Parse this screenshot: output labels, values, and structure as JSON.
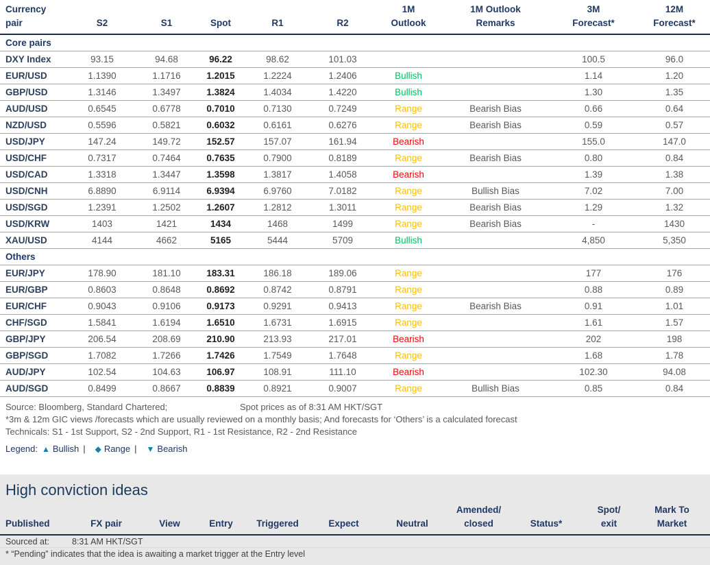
{
  "colors": {
    "navy_heading": "#1f3864",
    "bullish_green": "#00c060",
    "range_amber": "#ffc000",
    "bearish_red": "#ff0000",
    "legend_icon_teal": "#1581a8",
    "panel_background": "#e8e8e8"
  },
  "fx_table": {
    "headers": [
      "Currency\npair",
      "S2",
      "S1",
      "Spot",
      "R1",
      "R2",
      "1M\nOutlook",
      "1M Outlook\nRemarks",
      "3M\nForecast*",
      "12M\nForecast*"
    ],
    "sections": [
      {
        "label": "Core pairs",
        "rows": [
          {
            "pair": "DXY Index",
            "s2": "93.15",
            "s1": "94.68",
            "spot": "96.22",
            "r1": "98.62",
            "r2": "101.03",
            "outlook": "",
            "remarks": "",
            "m3": "100.5",
            "m12": "96.0"
          },
          {
            "pair": "EUR/USD",
            "s2": "1.1390",
            "s1": "1.1716",
            "spot": "1.2015",
            "r1": "1.2224",
            "r2": "1.2406",
            "outlook": "Bullish",
            "remarks": "",
            "m3": "1.14",
            "m12": "1.20"
          },
          {
            "pair": "GBP/USD",
            "s2": "1.3146",
            "s1": "1.3497",
            "spot": "1.3824",
            "r1": "1.4034",
            "r2": "1.4220",
            "outlook": "Bullish",
            "remarks": "",
            "m3": "1.30",
            "m12": "1.35"
          },
          {
            "pair": "AUD/USD",
            "s2": "0.6545",
            "s1": "0.6778",
            "spot": "0.7010",
            "r1": "0.7130",
            "r2": "0.7249",
            "outlook": "Range",
            "remarks": "Bearish Bias",
            "m3": "0.66",
            "m12": "0.64"
          },
          {
            "pair": "NZD/USD",
            "s2": "0.5596",
            "s1": "0.5821",
            "spot": "0.6032",
            "r1": "0.6161",
            "r2": "0.6276",
            "outlook": "Range",
            "remarks": "Bearish Bias",
            "m3": "0.59",
            "m12": "0.57"
          },
          {
            "pair": "USD/JPY",
            "s2": "147.24",
            "s1": "149.72",
            "spot": "152.57",
            "r1": "157.07",
            "r2": "161.94",
            "outlook": "Bearish",
            "remarks": "",
            "m3": "155.0",
            "m12": "147.0"
          },
          {
            "pair": "USD/CHF",
            "s2": "0.7317",
            "s1": "0.7464",
            "spot": "0.7635",
            "r1": "0.7900",
            "r2": "0.8189",
            "outlook": "Range",
            "remarks": "Bearish Bias",
            "m3": "0.80",
            "m12": "0.84"
          },
          {
            "pair": "USD/CAD",
            "s2": "1.3318",
            "s1": "1.3447",
            "spot": "1.3598",
            "r1": "1.3817",
            "r2": "1.4058",
            "outlook": "Bearish",
            "remarks": "",
            "m3": "1.39",
            "m12": "1.38"
          },
          {
            "pair": "USD/CNH",
            "s2": "6.8890",
            "s1": "6.9114",
            "spot": "6.9394",
            "r1": "6.9760",
            "r2": "7.0182",
            "outlook": "Range",
            "remarks": "Bullish Bias",
            "m3": "7.02",
            "m12": "7.00"
          },
          {
            "pair": "USD/SGD",
            "s2": "1.2391",
            "s1": "1.2502",
            "spot": "1.2607",
            "r1": "1.2812",
            "r2": "1.3011",
            "outlook": "Range",
            "remarks": "Bearish Bias",
            "m3": "1.29",
            "m12": "1.32"
          },
          {
            "pair": "USD/KRW",
            "s2": "1403",
            "s1": "1421",
            "spot": "1434",
            "r1": "1468",
            "r2": "1499",
            "outlook": "Range",
            "remarks": "Bearish Bias",
            "m3": "-",
            "m12": "1430"
          },
          {
            "pair": "XAU/USD",
            "s2": "4144",
            "s1": "4662",
            "spot": "5165",
            "r1": "5444",
            "r2": "5709",
            "outlook": "Bullish",
            "remarks": "",
            "m3": "4,850",
            "m12": "5,350"
          }
        ]
      },
      {
        "label": "Others",
        "rows": [
          {
            "pair": "EUR/JPY",
            "s2": "178.90",
            "s1": "181.10",
            "spot": "183.31",
            "r1": "186.18",
            "r2": "189.06",
            "outlook": "Range",
            "remarks": "",
            "m3": "177",
            "m12": "176"
          },
          {
            "pair": "EUR/GBP",
            "s2": "0.8603",
            "s1": "0.8648",
            "spot": "0.8692",
            "r1": "0.8742",
            "r2": "0.8791",
            "outlook": "Range",
            "remarks": "",
            "m3": "0.88",
            "m12": "0.89"
          },
          {
            "pair": "EUR/CHF",
            "s2": "0.9043",
            "s1": "0.9106",
            "spot": "0.9173",
            "r1": "0.9291",
            "r2": "0.9413",
            "outlook": "Range",
            "remarks": "Bearish Bias",
            "m3": "0.91",
            "m12": "1.01"
          },
          {
            "pair": "CHF/SGD",
            "s2": "1.5841",
            "s1": "1.6194",
            "spot": "1.6510",
            "r1": "1.6731",
            "r2": "1.6915",
            "outlook": "Range",
            "remarks": "",
            "m3": "1.61",
            "m12": "1.57"
          },
          {
            "pair": "GBP/JPY",
            "s2": "206.54",
            "s1": "208.69",
            "spot": "210.90",
            "r1": "213.93",
            "r2": "217.01",
            "outlook": "Bearish",
            "remarks": "",
            "m3": "202",
            "m12": "198"
          },
          {
            "pair": "GBP/SGD",
            "s2": "1.7082",
            "s1": "1.7266",
            "spot": "1.7426",
            "r1": "1.7549",
            "r2": "1.7648",
            "outlook": "Range",
            "remarks": "",
            "m3": "1.68",
            "m12": "1.78"
          },
          {
            "pair": "AUD/JPY",
            "s2": "102.54",
            "s1": "104.63",
            "spot": "106.97",
            "r1": "108.91",
            "r2": "111.10",
            "outlook": "Bearish",
            "remarks": "",
            "m3": "102.30",
            "m12": "94.08"
          },
          {
            "pair": "AUD/SGD",
            "s2": "0.8499",
            "s1": "0.8667",
            "spot": "0.8839",
            "r1": "0.8921",
            "r2": "0.9007",
            "outlook": "Range",
            "remarks": "Bullish Bias",
            "m3": "0.85",
            "m12": "0.84"
          }
        ]
      }
    ]
  },
  "footer": {
    "source_left": "Source: Bloomberg, Standard Chartered;",
    "source_right": "Spot prices as of 8:31 AM HKT/SGT",
    "note_forecast": "*3m & 12m GIC views /forecasts which are usually reviewed on a monthly basis; And forecasts for ‘Others’ is a calculated forecast",
    "note_technicals": "Technicals: S1 - 1st Support, S2 - 2nd Support, R1 - 1st Resistance, R2 - 2nd Resistance",
    "legend": {
      "label": "Legend:",
      "separator": "|",
      "items": [
        {
          "glyph": "▲",
          "label": "Bullish"
        },
        {
          "glyph": "◆",
          "label": "Range"
        },
        {
          "glyph": "▼",
          "label": "Bearish"
        }
      ]
    }
  },
  "high_conviction": {
    "title": "High conviction ideas",
    "headers": [
      "Published",
      "FX pair",
      "View",
      "Entry",
      "Triggered",
      "Expect",
      "Neutral",
      "Amended/\nclosed",
      "Status*",
      "Spot/\nexit",
      "Mark To\nMarket"
    ],
    "sourced_label": "Sourced at:",
    "sourced_value": "8:31 AM HKT/SGT",
    "pending_note": "* “Pending” indicates that the idea is awaiting a market trigger at the Entry level"
  }
}
